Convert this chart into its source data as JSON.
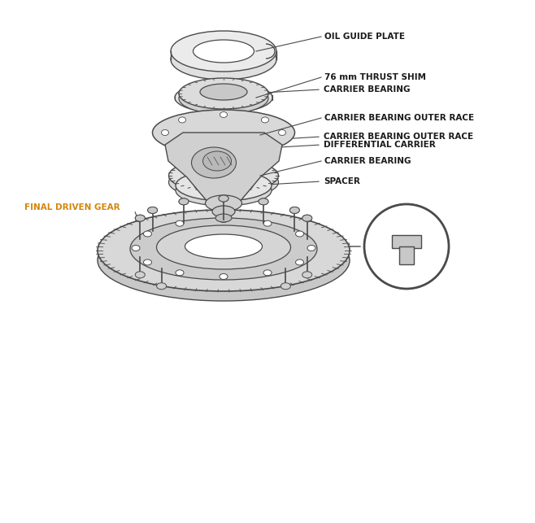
{
  "bg_color": "#ffffff",
  "line_color": "#4a4a4a",
  "label_color": "#1a1a1a",
  "special_label_color": "#d4860a",
  "figsize": [
    6.58,
    6.43
  ],
  "dpi": 100,
  "labels": {
    "oil_guide_plate": "OIL GUIDE PLATE",
    "thrust_shim": "76 mm THRUST SHIM",
    "carrier_bearing_outer_race_top": "CARRIER BEARING OUTER RACE",
    "carrier_bearing_top": "CARRIER BEARING",
    "final_driven_gear": "FINAL DRIVEN GEAR",
    "differential_carrier": "DIFFERENTIAL CARRIER",
    "carrier_bearing_bottom": "CARRIER BEARING",
    "carrier_bearing_outer_race_bottom": "CARRIER BEARING OUTER RACE",
    "spacer": "SPACER"
  }
}
